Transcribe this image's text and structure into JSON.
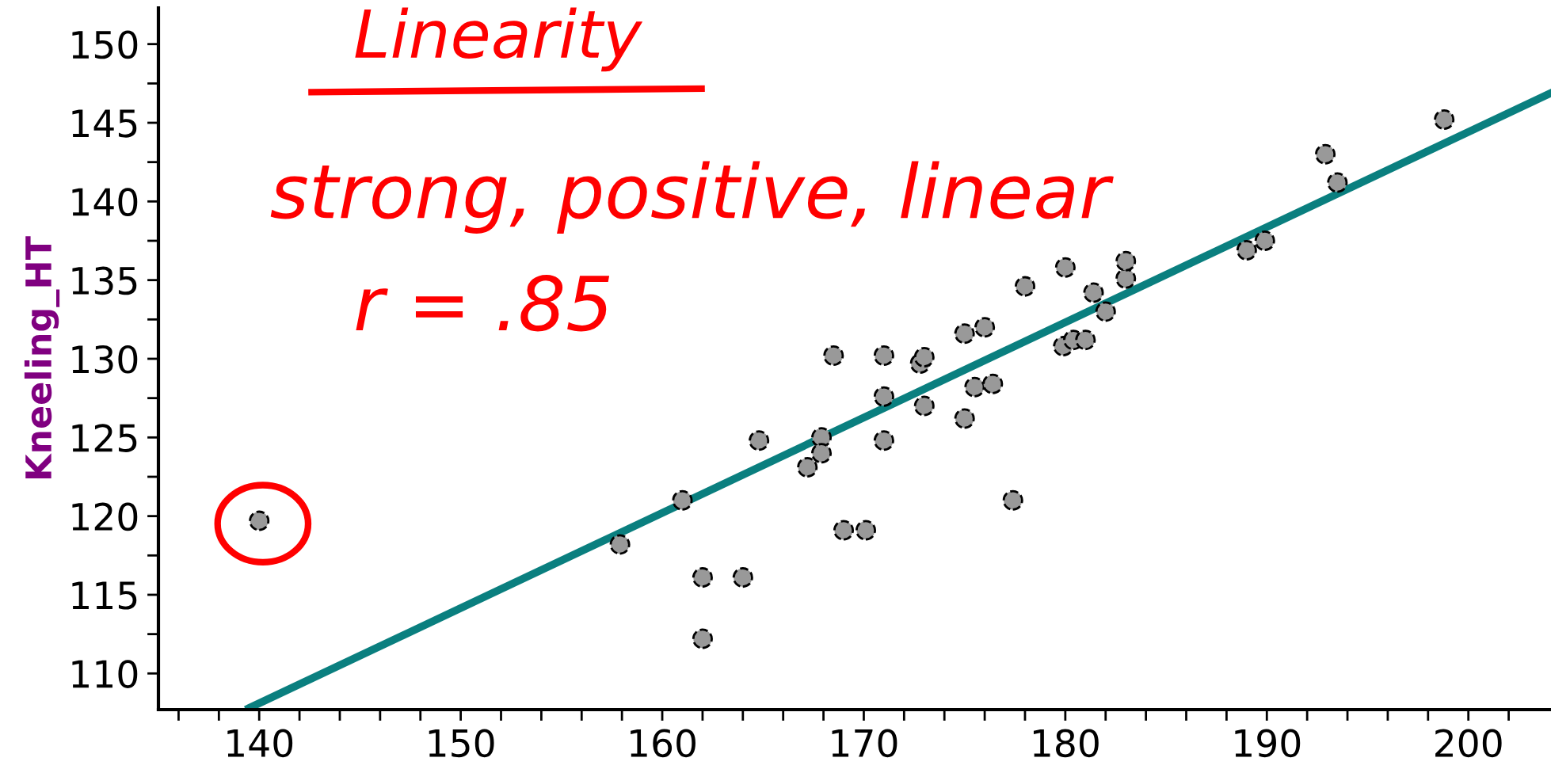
{
  "chart_data": {
    "type": "scatter",
    "ylabel": "Kneeling_HT",
    "annotations": [
      "Linearity",
      "strong, positive, linear",
      "r = .85"
    ],
    "series": [
      {
        "color": "#999999",
        "marker": "circle",
        "x": [
          140,
          157.9,
          161,
          162,
          162,
          164,
          164.8,
          167.2,
          167.9,
          167.9,
          168.5,
          169,
          170.1,
          171,
          171,
          171,
          172.8,
          173,
          173,
          175,
          175,
          175.5,
          176,
          176.4,
          177.4,
          178,
          180,
          179.9,
          180.4,
          181,
          181.4,
          182,
          183,
          183,
          189,
          189.9,
          192.9,
          193.5,
          198.8
        ],
        "values": [
          119.7,
          118.2,
          121.0,
          116.1,
          112.2,
          116.1,
          124.8,
          123.1,
          125.0,
          124.0,
          130.2,
          119.1,
          119.1,
          130.2,
          127.6,
          124.8,
          129.7,
          130.1,
          127.0,
          131.6,
          126.2,
          128.2,
          132.0,
          128.4,
          121.0,
          134.6,
          135.8,
          130.8,
          131.2,
          131.2,
          134.2,
          133.0,
          135.1,
          136.2,
          136.9,
          137.5,
          143.0,
          141.2,
          145.2
        ]
      },
      {
        "type": "line",
        "color": "#0a7f7f",
        "line_style": "solid",
        "x": [
          139.5,
          204.1
        ],
        "values": [
          107.8,
          146.9
        ]
      }
    ],
    "xlim": [
      135,
      204.1
    ],
    "ylim": [
      107.7,
      152.3
    ],
    "xticks": [
      {
        "value": 136,
        "label": null
      },
      {
        "value": 138,
        "label": null
      },
      140,
      {
        "value": 142,
        "label": null
      },
      {
        "value": 144,
        "label": null
      },
      {
        "value": 146,
        "label": null
      },
      {
        "value": 148,
        "label": null
      },
      150,
      {
        "value": 152,
        "label": null
      },
      {
        "value": 154,
        "label": null
      },
      {
        "value": 156,
        "label": null
      },
      {
        "value": 158,
        "label": null
      },
      160,
      {
        "value": 162,
        "label": null
      },
      {
        "value": 164,
        "label": null
      },
      {
        "value": 166,
        "label": null
      },
      {
        "value": 168,
        "label": null
      },
      170,
      {
        "value": 172,
        "label": null
      },
      {
        "value": 174,
        "label": null
      },
      {
        "value": 176,
        "label": null
      },
      {
        "value": 178,
        "label": null
      },
      180,
      {
        "value": 182,
        "label": null
      },
      {
        "value": 184,
        "label": null
      },
      {
        "value": 186,
        "label": null
      },
      {
        "value": 188,
        "label": null
      },
      190,
      {
        "value": 192,
        "label": null
      },
      {
        "value": 194,
        "label": null
      },
      {
        "value": 196,
        "label": null
      },
      {
        "value": 198,
        "label": null
      },
      200,
      {
        "value": 202,
        "label": null
      }
    ],
    "yticks": [
      110,
      {
        "value": 112.5,
        "label": null
      },
      115,
      {
        "value": 117.5,
        "label": null
      },
      120,
      {
        "value": 122.5,
        "label": null
      },
      125,
      {
        "value": 127.5,
        "label": null
      },
      130,
      {
        "value": 132.5,
        "label": null
      },
      135,
      {
        "value": 137.5,
        "label": null
      },
      140,
      {
        "value": 142.5,
        "label": null
      },
      145,
      {
        "value": 147.5,
        "label": null
      },
      150
    ],
    "grid": false,
    "legend": false
  }
}
